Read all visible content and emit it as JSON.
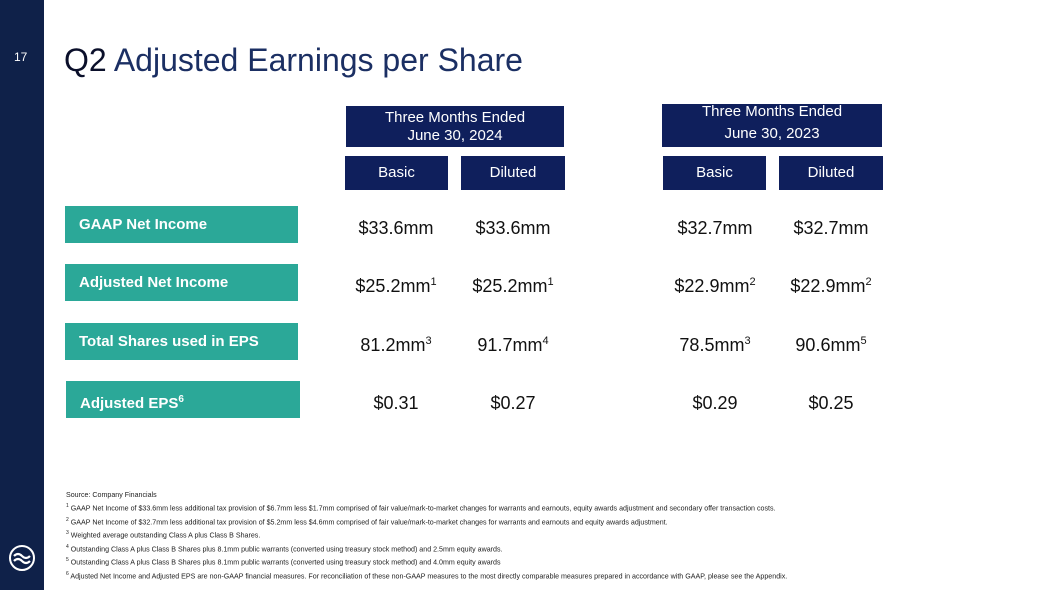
{
  "page_number": "17",
  "title": {
    "prefix": "Q2",
    "main": "Adjusted Earnings per Share"
  },
  "periods": [
    {
      "line1": "Three Months Ended",
      "line2": "June 30, 2024",
      "basic": "Basic",
      "diluted": "Diluted"
    },
    {
      "line1": "Three Months Ended",
      "line2": "June 30, 2023",
      "basic": "Basic",
      "diluted": "Diluted"
    }
  ],
  "rows": [
    {
      "label": "GAAP Net Income",
      "label_sup": "",
      "values": [
        {
          "v": "$33.6mm",
          "sup": ""
        },
        {
          "v": "$33.6mm",
          "sup": ""
        },
        {
          "v": "$32.7mm",
          "sup": ""
        },
        {
          "v": "$32.7mm",
          "sup": ""
        }
      ]
    },
    {
      "label": "Adjusted Net Income",
      "label_sup": "",
      "values": [
        {
          "v": "$25.2mm",
          "sup": "1"
        },
        {
          "v": "$25.2mm",
          "sup": "1"
        },
        {
          "v": "$22.9mm",
          "sup": "2"
        },
        {
          "v": "$22.9mm",
          "sup": "2"
        }
      ]
    },
    {
      "label": "Total Shares used in EPS",
      "label_sup": "",
      "values": [
        {
          "v": "81.2mm",
          "sup": "3"
        },
        {
          "v": "91.7mm",
          "sup": "4"
        },
        {
          "v": "78.5mm",
          "sup": "3"
        },
        {
          "v": "90.6mm",
          "sup": "5"
        }
      ]
    },
    {
      "label": "Adjusted EPS",
      "label_sup": "6",
      "values": [
        {
          "v": "$0.31",
          "sup": ""
        },
        {
          "v": "$0.27",
          "sup": ""
        },
        {
          "v": "$0.29",
          "sup": ""
        },
        {
          "v": "$0.25",
          "sup": ""
        }
      ]
    }
  ],
  "footnotes": {
    "source": "Source: Company Financials",
    "notes": [
      {
        "n": "1",
        "text": "GAAP Net Income of $33.6mm less additional tax provision of $6.7mm less $1.7mm comprised of fair value/mark-to-market changes for warrants and earnouts, equity awards adjustment and secondary offer transaction costs."
      },
      {
        "n": "2",
        "text": "GAAP Net Income of $32.7mm less additional tax provision of $5.2mm less  $4.6mm comprised of fair value/mark-to-market changes for warrants and earnouts and equity awards adjustment."
      },
      {
        "n": "3",
        "text": "Weighted average outstanding Class A plus Class B Shares."
      },
      {
        "n": "4",
        "text": "Outstanding Class A plus Class B Shares plus 8.1mm public warrants (converted using treasury stock method) and 2.5mm equity awards."
      },
      {
        "n": "5",
        "text": "Outstanding Class A plus Class B Shares plus 8.1mm public warrants (converted using treasury stock method) and 4.0mm equity awards"
      },
      {
        "n": "6",
        "text": "Adjusted Net Income and Adjusted EPS are non-GAAP financial measures.  For reconciliation of these non-GAAP measures to the most directly comparable measures prepared in accordance with GAAP, please see the Appendix."
      }
    ]
  },
  "colors": {
    "sidebar": "#0f2149",
    "header": "#0f1f5c",
    "label_bg": "#2ba898",
    "title": "#1b2f63"
  },
  "icons": {
    "logo": "company-logo-icon"
  }
}
